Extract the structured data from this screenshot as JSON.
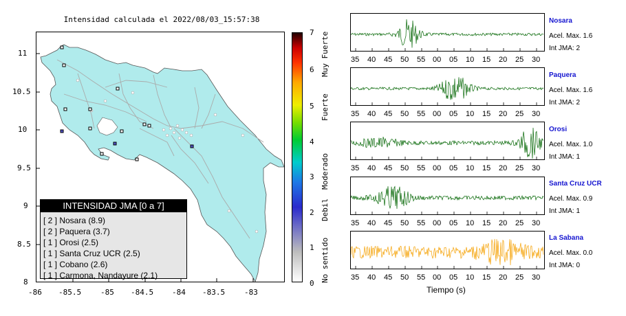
{
  "map": {
    "title": "Intensidad calculada el 2022/08/03_15:57:38",
    "y_ticks": [
      "11",
      "10.5",
      "10",
      "9.5",
      "9",
      "8.5",
      "8"
    ],
    "x_ticks": [
      "-86",
      "-85.5",
      "-85",
      "-84.5",
      "-84",
      "-83.5",
      "-83"
    ],
    "legend": {
      "title": "INTENSIDAD JMA [0 a 7]",
      "rows": [
        "[ 2 ]  Nosara (8.9)",
        "[ 2 ]  Paquera (3.7)",
        "[ 1 ]  Orosi (2.5)",
        "[ 1 ]  Santa Cruz UCR (2.5)",
        "[ 1 ]  Cobano (2.6)",
        "[ 1 ]  Carmona, Nandayure (2.1)"
      ]
    }
  },
  "colorbar": {
    "numbers": [
      "7",
      "6",
      "5",
      "4",
      "3",
      "2",
      "1",
      "0"
    ],
    "words": [
      "Muy Fuerte",
      "Fuerte",
      "Moderado",
      "Debil",
      "No sentido"
    ]
  },
  "seismograms": {
    "xlabel": "Tiempo (s)",
    "panels": [
      {
        "station": "Nosara",
        "acel": "Acel. Max. 1.6",
        "int": "Int JMA: 2",
        "color": "#006400",
        "ticks": [
          "35",
          "40",
          "45",
          "50",
          "55",
          "00",
          "05",
          "10",
          "15",
          "20",
          "25",
          "30"
        ]
      },
      {
        "station": "Paquera",
        "acel": "Acel. Max. 1.6",
        "int": "Int JMA: 2",
        "color": "#006400",
        "ticks": [
          "35",
          "40",
          "45",
          "50",
          "55",
          "00",
          "05",
          "10",
          "15",
          "20",
          "25",
          "30"
        ]
      },
      {
        "station": "Orosi",
        "acel": "Acel. Max. 1.0",
        "int": "Int JMA: 1",
        "color": "#006400",
        "ticks": [
          "35",
          "40",
          "45",
          "50",
          "55",
          "00",
          "05",
          "10",
          "15",
          "20",
          "25",
          "30"
        ]
      },
      {
        "station": "Santa Cruz UCR",
        "acel": "Acel. Max. 0.9",
        "int": "Int JMA: 1",
        "color": "#006400",
        "ticks": [
          "35",
          "40",
          "45",
          "50",
          "55",
          "00",
          "05",
          "10",
          "15",
          "20",
          "25",
          "30"
        ]
      },
      {
        "station": "La Sabana",
        "acel": "Acel. Max. 0.0",
        "int": "Int JMA: 0",
        "color": "#f5a000",
        "ticks": [
          "35",
          "40",
          "45",
          "50",
          "55",
          "00",
          "05",
          "10",
          "15",
          "20",
          "25",
          "30"
        ]
      }
    ]
  }
}
